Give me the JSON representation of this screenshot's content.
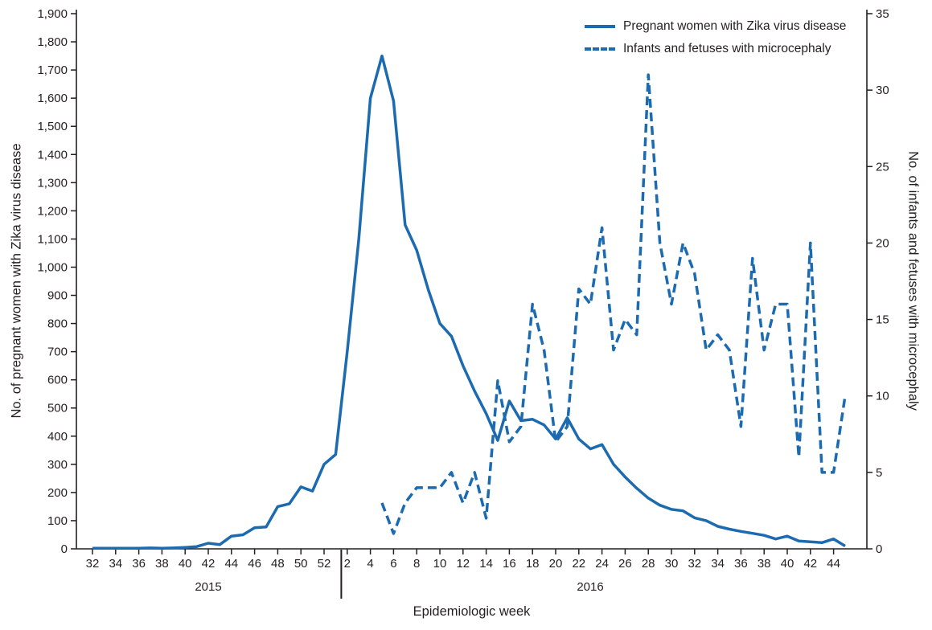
{
  "chart_data": {
    "type": "line",
    "title": "",
    "xlabel": "Epidemiologic week",
    "ylabel_left": "No. of pregnant women with Zika virus disease",
    "ylabel_right": "No. of infants and fetuses with microcephaly",
    "y_left_axis": {
      "min": 0,
      "max": 1900,
      "step": 100
    },
    "y_right_axis": {
      "min": 0,
      "max": 35,
      "step": 5
    },
    "x_ticks_2015": [
      32,
      34,
      36,
      38,
      40,
      42,
      44,
      46,
      48,
      50,
      52
    ],
    "x_ticks_2016": [
      2,
      4,
      6,
      8,
      10,
      12,
      14,
      16,
      18,
      20,
      22,
      24,
      26,
      28,
      30,
      32,
      34,
      36,
      38,
      40,
      42,
      44
    ],
    "year_labels": [
      "2015",
      "2016"
    ],
    "legend_position": "top-right",
    "grid": false,
    "accent_color": "#1c6bb0",
    "series": [
      {
        "name": "Pregnant women with Zika virus disease",
        "axis": "left",
        "line_style": "solid",
        "color": "#1c6bb0",
        "start": {
          "year": 2015,
          "week": 32
        },
        "values": [
          2,
          2,
          2,
          2,
          2,
          3,
          2,
          3,
          5,
          8,
          20,
          15,
          45,
          50,
          75,
          78,
          150,
          160,
          220,
          205,
          300,
          335,
          700,
          1100,
          1600,
          1750,
          1590,
          1150,
          1060,
          920,
          800,
          755,
          650,
          560,
          480,
          385,
          525,
          455,
          460,
          440,
          390,
          465,
          390,
          355,
          370,
          300,
          255,
          215,
          180,
          155,
          140,
          135,
          110,
          100,
          80,
          70,
          62,
          55,
          48,
          35,
          45,
          28,
          25,
          22,
          35,
          10
        ]
      },
      {
        "name": "Infants and fetuses with microcephaly",
        "axis": "right",
        "line_style": "dashed",
        "color": "#1c6bb0",
        "start": {
          "year": 2016,
          "week": 5
        },
        "values": [
          3,
          1,
          3,
          4,
          4,
          4,
          5,
          3,
          5,
          2,
          11,
          7,
          8,
          16,
          13,
          7,
          8,
          17,
          16,
          21,
          13,
          15,
          14,
          31,
          20,
          16,
          20,
          18,
          13,
          14,
          13,
          8,
          19,
          13,
          16,
          16,
          6,
          20,
          5,
          5,
          10
        ]
      }
    ]
  }
}
